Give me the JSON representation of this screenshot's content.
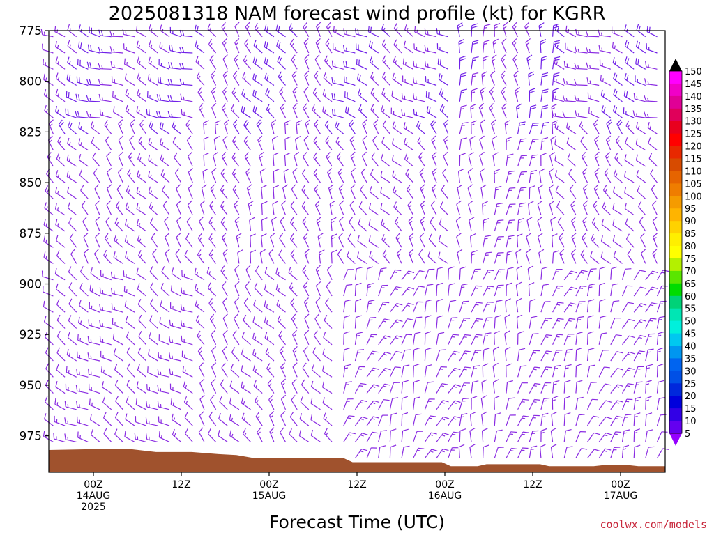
{
  "chart_data": {
    "type": "wind-barb",
    "title": "2025081318 NAM forecast wind profile (kt) for KGRR",
    "xlabel": "Forecast Time (UTC)",
    "ylabel": "",
    "credit": "coolwx.com/models",
    "y_axis": {
      "ticks": [
        "775",
        "800",
        "825",
        "850",
        "875",
        "900",
        "925",
        "950",
        "975"
      ],
      "range_hPa": [
        775,
        993
      ],
      "inverted": true
    },
    "x_axis": {
      "range_hours": [
        -3,
        66
      ],
      "ticks": [
        {
          "hour": 6,
          "lines": [
            "00Z",
            "14AUG",
            "2025"
          ]
        },
        {
          "hour": 18,
          "lines": [
            "12Z",
            "",
            ""
          ]
        },
        {
          "hour": 30,
          "lines": [
            "00Z",
            "15AUG",
            ""
          ]
        },
        {
          "hour": 42,
          "lines": [
            "12Z",
            "",
            ""
          ]
        },
        {
          "hour": 54,
          "lines": [
            "00Z",
            "16AUG",
            ""
          ]
        },
        {
          "hour": 66,
          "lines": [
            "12Z",
            "",
            ""
          ]
        },
        {
          "hour": 78,
          "lines": [
            "00Z",
            "17AUG",
            ""
          ]
        }
      ]
    },
    "colorbar": {
      "unit": "kt",
      "labels": [
        "150",
        "145",
        "140",
        "135",
        "130",
        "125",
        "120",
        "115",
        "110",
        "105",
        "100",
        "95",
        "90",
        "85",
        "80",
        "75",
        "70",
        "65",
        "60",
        "55",
        "50",
        "45",
        "40",
        "35",
        "30",
        "25",
        "20",
        "15",
        "10",
        "5"
      ],
      "colors": [
        "#000000",
        "#ff00ff",
        "#f000c8",
        "#e00096",
        "#e0005a",
        "#e8001e",
        "#ff0000",
        "#e82800",
        "#d74b00",
        "#e66400",
        "#ef7d00",
        "#f59b00",
        "#ffb400",
        "#ffd200",
        "#ffef00",
        "#ffff00",
        "#b4f000",
        "#5ae600",
        "#00dc00",
        "#00d278",
        "#00e6b4",
        "#00f0dc",
        "#00c8f0",
        "#0096f0",
        "#0064f0",
        "#0050e6",
        "#0028dc",
        "#0000dc",
        "#3200e6",
        "#6400f0",
        "#9600ff"
      ]
    },
    "terrain": {
      "label": "surface",
      "color": "#a0522d",
      "surface_pressure_hPa": [
        [
          -3,
          982
        ],
        [
          3,
          981.5
        ],
        [
          6,
          981.5
        ],
        [
          9,
          983
        ],
        [
          13,
          983
        ],
        [
          16,
          984
        ],
        [
          18,
          984.5
        ],
        [
          20,
          986
        ],
        [
          30,
          986
        ],
        [
          31,
          988
        ],
        [
          36,
          988
        ],
        [
          41,
          988
        ],
        [
          42,
          990
        ],
        [
          45,
          990
        ],
        [
          46,
          989
        ],
        [
          52,
          989
        ],
        [
          53,
          990
        ],
        [
          58,
          990
        ],
        [
          59,
          989.5
        ],
        [
          62,
          989.5
        ],
        [
          63,
          990
        ],
        [
          69,
          990
        ],
        [
          73,
          990
        ],
        [
          74,
          989
        ],
        [
          81,
          989
        ],
        [
          82,
          990.5
        ],
        [
          84,
          990.5
        ],
        [
          85,
          988.5
        ],
        [
          87,
          988.5
        ]
      ]
    },
    "wind_field": {
      "description": "Wind barbs plotted every forecast hour at every model level from the surface to 775 hPa; barb color by speed in kt.",
      "series": [
        {
          "name": "barb_direction_deg_from",
          "regimes": [
            {
              "hours": [
                -3,
                14
              ],
              "low_levels": 300,
              "mid_levels": 320,
              "upper_levels": 290
            },
            {
              "hours": [
                14,
                30
              ],
              "low_levels": 320,
              "mid_levels": 340,
              "upper_levels": 320
            },
            {
              "hours": [
                30,
                42
              ],
              "low_levels": 20,
              "mid_levels": 320,
              "upper_levels": 300
            },
            {
              "hours": [
                42,
                54
              ],
              "low_levels": 10,
              "mid_levels": 0,
              "upper_levels": 350
            },
            {
              "hours": [
                54,
                70
              ],
              "low_levels": 20,
              "mid_levels": 320,
              "upper_levels": 290
            },
            {
              "hours": [
                70,
                87
              ],
              "low_levels": 20,
              "mid_levels": 300,
              "upper_levels": 280
            }
          ]
        },
        {
          "name": "speed_kt",
          "typical_range": [
            5,
            25
          ]
        }
      ]
    }
  }
}
